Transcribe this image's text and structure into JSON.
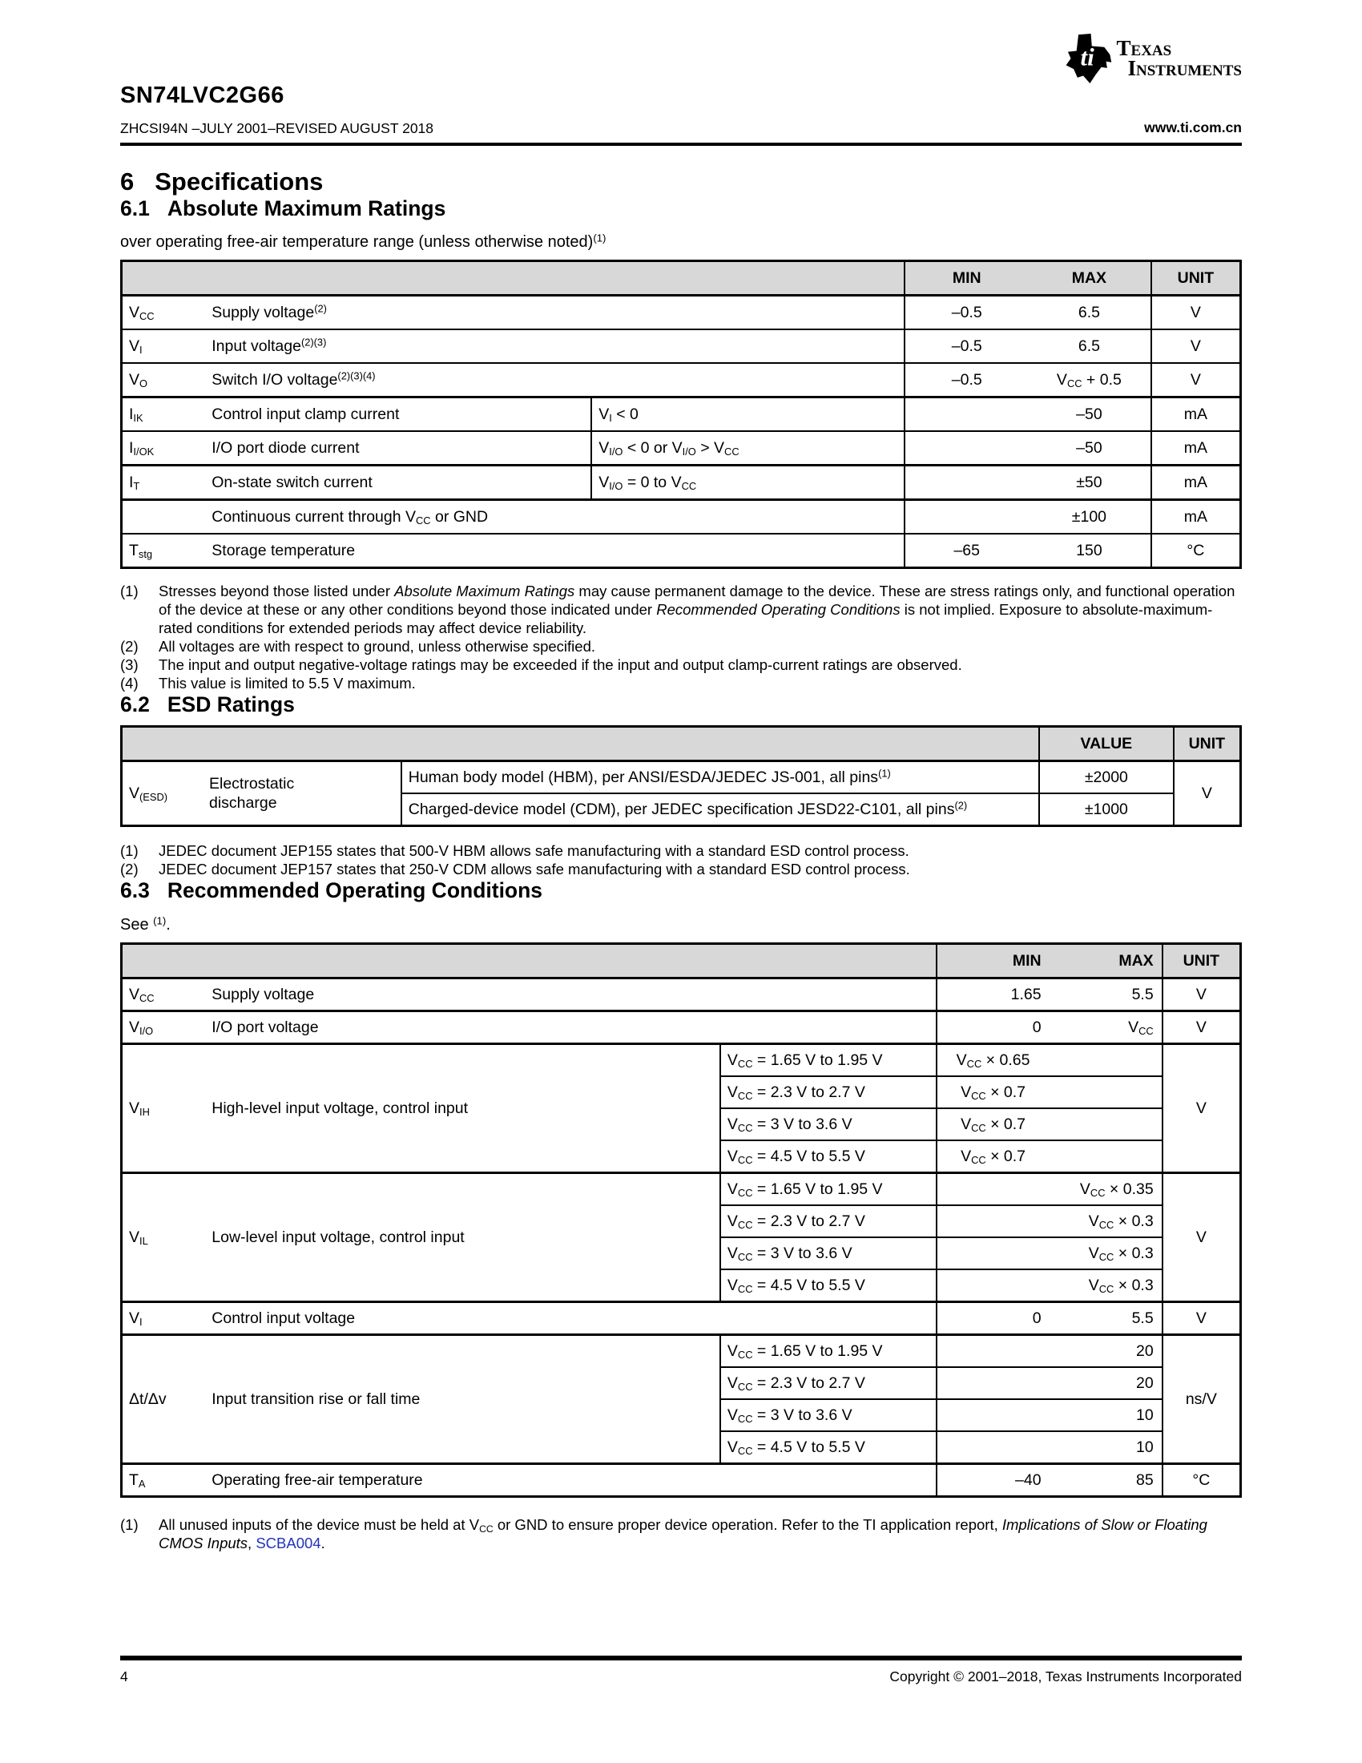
{
  "page": {
    "link_color": "#2233bb",
    "table_header_bg": "#d8d8d8"
  },
  "header": {
    "part": "SN74LVC2G66",
    "docline": "ZHCSI94N –JULY 2001–REVISED AUGUST 2018",
    "site": "www.ti.com.cn",
    "logo_line1": "Texas",
    "logo_line2": "Instruments"
  },
  "sections": {
    "spec": {
      "num": "6",
      "title": "Specifications"
    },
    "s61": {
      "num": "6.1",
      "title": "Absolute Maximum Ratings",
      "subtitle": "over operating free-air temperature range (unless otherwise noted)^(1)^"
    },
    "s62": {
      "num": "6.2",
      "title": "ESD Ratings"
    },
    "s63": {
      "num": "6.3",
      "title": "Recommended Operating Conditions",
      "subtitle": "See ^(1)^."
    }
  },
  "tables": {
    "abs_max": {
      "name": "absolute-maximum-ratings-table",
      "cls": "t61",
      "mmalign": "c",
      "col_widths": [
        "7.5%",
        "34.5%",
        "28%",
        "22%",
        "8%"
      ],
      "header": [
        {
          "t": "",
          "cs": 3
        },
        {
          "mm": [
            "MIN",
            "MAX"
          ],
          "cls": "vl"
        },
        {
          "t": "UNIT",
          "cls": "vl"
        }
      ],
      "rows": [
        [
          {
            "t": "V~CC~",
            "cls": "sym"
          },
          {
            "t": "Supply voltage^(2)^",
            "cs": 2,
            "cls": "param"
          },
          {
            "mm": [
              "–0.5",
              "6.5"
            ],
            "cls": "vl"
          },
          {
            "t": "V",
            "cls": "unit vl"
          }
        ],
        [
          {
            "t": "V~I~",
            "cls": "sym"
          },
          {
            "t": "Input voltage^(2)(3)^",
            "cs": 2,
            "cls": "param"
          },
          {
            "mm": [
              "–0.5",
              "6.5"
            ],
            "cls": "vl"
          },
          {
            "t": "V",
            "cls": "unit vl"
          }
        ],
        [
          {
            "t": "V~O~",
            "cls": "sym"
          },
          {
            "t": "Switch I/O voltage^(2)(3)(4)^",
            "cs": 2,
            "cls": "param"
          },
          {
            "mm": [
              "–0.5",
              "V~CC~ + 0.5"
            ],
            "cls": "vl"
          },
          {
            "t": "V",
            "cls": "unit vl"
          }
        ],
        [
          {
            "t": "I~IK~",
            "cls": "sym bt"
          },
          {
            "t": "Control input clamp current",
            "cls": "param bt"
          },
          {
            "t": "V~I~ < 0",
            "cls": "cond vl bt"
          },
          {
            "mm": [
              "",
              "–50"
            ],
            "cls": "vl bt"
          },
          {
            "t": "mA",
            "cls": "unit vl bt"
          }
        ],
        [
          {
            "t": "I~I/OK~",
            "cls": "sym"
          },
          {
            "t": "I/O port diode current",
            "cls": "param"
          },
          {
            "t": "V~I/O~ < 0 or V~I/O~ > V~CC~",
            "cls": "cond vl"
          },
          {
            "mm": [
              "",
              "–50"
            ],
            "cls": "vl"
          },
          {
            "t": "mA",
            "cls": "unit vl"
          }
        ],
        [
          {
            "t": "I~T~",
            "cls": "sym bt"
          },
          {
            "t": "On-state switch current",
            "cls": "param bt"
          },
          {
            "t": "V~I/O~ = 0 to V~CC~",
            "cls": "cond vl bt"
          },
          {
            "mm": [
              "",
              "±50"
            ],
            "cls": "vl bt"
          },
          {
            "t": "mA",
            "cls": "unit vl bt"
          }
        ],
        [
          {
            "t": "",
            "cls": "sym bt"
          },
          {
            "t": "Continuous current through V~CC~ or GND",
            "cs": 2,
            "cls": "param bt"
          },
          {
            "mm": [
              "",
              "±100"
            ],
            "cls": "vl bt"
          },
          {
            "t": "mA",
            "cls": "unit vl bt"
          }
        ],
        [
          {
            "t": "T~stg~",
            "cls": "sym"
          },
          {
            "t": "Storage temperature",
            "cs": 2,
            "cls": "param"
          },
          {
            "mm": [
              "–65",
              "150"
            ],
            "cls": "vl"
          },
          {
            "t": "°C",
            "cls": "unit vl"
          }
        ]
      ]
    },
    "esd": {
      "name": "esd-ratings-table",
      "cls": "t62",
      "mmalign": "c",
      "col_widths": [
        "25%",
        "57%",
        "12%",
        "6%"
      ],
      "header": [
        {
          "t": "",
          "cs": 2
        },
        {
          "t": "VALUE",
          "cls": "vl"
        },
        {
          "t": "UNIT",
          "cls": "vl"
        }
      ],
      "rows": [
        [
          {
            "esd": true,
            "rs": 2,
            "sym": "V~(ESD)~",
            "label": "Electrostatic discharge",
            "cls": "esdc"
          },
          {
            "t": "Human body model (HBM), per ANSI/ESDA/JEDEC JS-001, all pins^(1)^",
            "cls": "desc vl"
          },
          {
            "t": "±2000",
            "cls": "val vl"
          },
          {
            "t": "V",
            "rs": 2,
            "cls": "unit vl"
          }
        ],
        [
          {
            "t": "Charged-device model (CDM), per JEDEC specification JESD22-C101, all pins^(2)^",
            "cls": "desc vl"
          },
          {
            "t": "±1000",
            "cls": "val vl"
          }
        ]
      ]
    },
    "roc": {
      "name": "recommended-operating-conditions-table",
      "cls": "t63",
      "mmalign": "r",
      "col_widths": [
        "7.5%",
        "46%",
        "19.3%",
        "20.2%",
        "7%"
      ],
      "header": [
        {
          "t": "",
          "cs": 3
        },
        {
          "mm": [
            "MIN",
            "MAX"
          ],
          "cls": "vl"
        },
        {
          "t": "UNIT",
          "cls": "vl"
        }
      ],
      "rows": [
        [
          {
            "t": "V~CC~",
            "cls": "sym"
          },
          {
            "t": "Supply voltage",
            "cs": 2,
            "cls": "param"
          },
          {
            "mm": [
              "1.65",
              "5.5"
            ],
            "cls": "vl"
          },
          {
            "t": "V",
            "cls": "unit vl"
          }
        ],
        [
          {
            "t": "V~I/O~",
            "cls": "sym bt"
          },
          {
            "t": "I/O port voltage",
            "cs": 2,
            "cls": "param bt"
          },
          {
            "mm": [
              "0",
              "V~CC~"
            ],
            "cls": "vl bt"
          },
          {
            "t": "V",
            "cls": "unit vl bt"
          }
        ],
        [
          {
            "t": "V~IH~",
            "rs": 4,
            "cls": "sym bt"
          },
          {
            "t": "High-level input voltage, control input",
            "rs": 4,
            "cls": "param bt"
          },
          {
            "t": "V~CC~ = 1.65 V to 1.95 V",
            "cls": "cond vl bt"
          },
          {
            "mm": [
              "V~CC~ × 0.65",
              ""
            ],
            "mma": "c",
            "cls": "vl bt"
          },
          {
            "t": "V",
            "rs": 4,
            "cls": "unit vl bt"
          }
        ],
        [
          {
            "t": "V~CC~ = 2.3 V to 2.7 V",
            "cls": "cond vl"
          },
          {
            "mm": [
              "V~CC~ × 0.7",
              ""
            ],
            "mma": "c",
            "cls": "vl"
          }
        ],
        [
          {
            "t": "V~CC~ = 3 V to 3.6 V",
            "cls": "cond vl"
          },
          {
            "mm": [
              "V~CC~ × 0.7",
              ""
            ],
            "mma": "c",
            "cls": "vl"
          }
        ],
        [
          {
            "t": "V~CC~ = 4.5 V to 5.5 V",
            "cls": "cond vl"
          },
          {
            "mm": [
              "V~CC~ × 0.7",
              ""
            ],
            "mma": "c",
            "cls": "vl"
          }
        ],
        [
          {
            "t": "V~IL~",
            "rs": 4,
            "cls": "sym bt"
          },
          {
            "t": "Low-level input voltage, control input",
            "rs": 4,
            "cls": "param bt"
          },
          {
            "t": "V~CC~ = 1.65 V to 1.95 V",
            "cls": "cond vl bt"
          },
          {
            "mm": [
              "",
              "V~CC~ × 0.35"
            ],
            "cls": "vl bt"
          },
          {
            "t": "V",
            "rs": 4,
            "cls": "unit vl bt"
          }
        ],
        [
          {
            "t": "V~CC~ = 2.3 V to 2.7 V",
            "cls": "cond vl"
          },
          {
            "mm": [
              "",
              "V~CC~ × 0.3"
            ],
            "cls": "vl"
          }
        ],
        [
          {
            "t": "V~CC~ = 3 V to 3.6 V",
            "cls": "cond vl"
          },
          {
            "mm": [
              "",
              "V~CC~ × 0.3"
            ],
            "cls": "vl"
          }
        ],
        [
          {
            "t": "V~CC~ = 4.5 V to 5.5 V",
            "cls": "cond vl"
          },
          {
            "mm": [
              "",
              "V~CC~ × 0.3"
            ],
            "cls": "vl"
          }
        ],
        [
          {
            "t": "V~I~",
            "cls": "sym bt"
          },
          {
            "t": "Control input voltage",
            "cs": 2,
            "cls": "param bt"
          },
          {
            "mm": [
              "0",
              "5.5"
            ],
            "cls": "vl bt"
          },
          {
            "t": "V",
            "cls": "unit vl bt"
          }
        ],
        [
          {
            "t": "Δt/Δv",
            "rs": 4,
            "cls": "sym bt"
          },
          {
            "t": "Input transition rise or fall time",
            "rs": 4,
            "cls": "param bt"
          },
          {
            "t": "V~CC~ = 1.65 V to 1.95 V",
            "cls": "cond vl bt"
          },
          {
            "mm": [
              "",
              "20"
            ],
            "cls": "vl bt"
          },
          {
            "t": "ns/V",
            "rs": 4,
            "cls": "unit vl bt"
          }
        ],
        [
          {
            "t": "V~CC~ = 2.3 V to 2.7 V",
            "cls": "cond vl"
          },
          {
            "mm": [
              "",
              "20"
            ],
            "cls": "vl"
          }
        ],
        [
          {
            "t": "V~CC~ = 3 V to 3.6 V",
            "cls": "cond vl"
          },
          {
            "mm": [
              "",
              "10"
            ],
            "cls": "vl"
          }
        ],
        [
          {
            "t": "V~CC~ = 4.5 V to 5.5 V",
            "cls": "cond vl"
          },
          {
            "mm": [
              "",
              "10"
            ],
            "cls": "vl"
          }
        ],
        [
          {
            "t": "T~A~",
            "cls": "sym bt"
          },
          {
            "t": "Operating free-air temperature",
            "cs": 2,
            "cls": "param bt"
          },
          {
            "mm": [
              "–40",
              "85"
            ],
            "cls": "vl bt"
          },
          {
            "t": "°C",
            "cls": "unit vl bt"
          }
        ]
      ]
    }
  },
  "notes": {
    "abs_max": [
      "Stresses beyond those listed under *Absolute Maximum Ratings* may cause permanent damage to the device. These are stress ratings only, and functional operation of the device at these or any other conditions beyond those indicated under *Recommended Operating Conditions* is not implied. Exposure to absolute-maximum-rated conditions for extended periods may affect device reliability.",
      "All voltages are with respect to ground, unless otherwise specified.",
      "The input and output negative-voltage ratings may be exceeded if the input and output clamp-current ratings are observed.",
      "This value is limited to 5.5 V maximum."
    ],
    "esd": [
      "JEDEC document JEP155 states that 500-V HBM allows safe manufacturing with a standard ESD control process.",
      "JEDEC document JEP157 states that 250-V CDM allows safe manufacturing with a standard ESD control process."
    ],
    "roc": [
      "All unused inputs of the device must be held at V~CC~ or GND to ensure proper device operation. Refer to the TI application report, *Implications of Slow or Floating CMOS Inputs*, @SCBA004@."
    ]
  },
  "footer": {
    "page": "4",
    "copyright": "Copyright © 2001–2018, Texas Instruments Incorporated"
  }
}
